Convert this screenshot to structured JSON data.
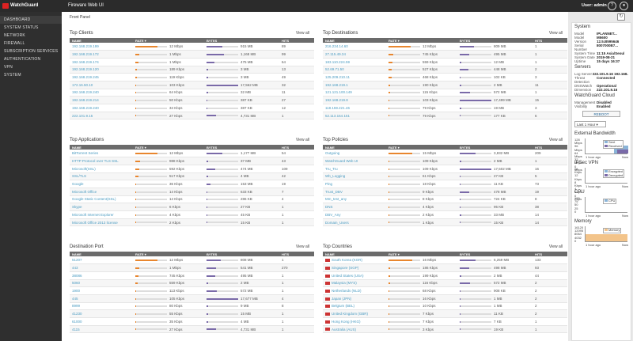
{
  "header": {
    "logo": "WatchGuard",
    "title": "Fireware Web UI",
    "user": "User: admin",
    "help_icon": "?",
    "user_icon": "person"
  },
  "sidebar": [
    "DASHBOARD",
    "SYSTEM STATUS",
    "NETWORK",
    "FIREWALL",
    "SUBSCRIPTION SERVICES",
    "AUTHENTICATION",
    "VPN",
    "SYSTEM"
  ],
  "breadcrumb": "Front Panel",
  "columns": {
    "rate": "RATE ▾",
    "bytes": "BYTES",
    "hits": "HITS"
  },
  "view_all": "View all",
  "cards": [
    {
      "title": "Top Clients",
      "col1": "NAME",
      "rows": [
        [
          "192.168.219.199",
          "12 Mbps",
          "915 MB",
          "89",
          0.7,
          0.5
        ],
        [
          "192.168.219.172",
          "1 Mbps",
          "1,168 MB",
          "99",
          0.12,
          0.55
        ],
        [
          "192.168.219.174",
          "1 Mbps",
          "475 MB",
          "64",
          0.1,
          0.25
        ],
        [
          "192.168.219.120",
          "189 Kbps",
          "3 MB",
          "13",
          0.05,
          0.04
        ],
        [
          "192.168.219.245",
          "119 Kbps",
          "3 MB",
          "49",
          0.04,
          0.04
        ],
        [
          "172.16.50.10",
          "103 Kbps",
          "17,562 MB",
          "32",
          0.03,
          1.0
        ],
        [
          "192.168.219.240",
          "64 Kbps",
          "32 MB",
          "11",
          0.02,
          0.06
        ],
        [
          "192.168.219.214",
          "50 Kbps",
          "387 KB",
          "27",
          0.02,
          0.02
        ],
        [
          "192.168.219.240",
          "34 Kbps",
          "387 KB",
          "12",
          0.01,
          0.02
        ],
        [
          "222.101.9.15",
          "27 Kbps",
          "4,731 MB",
          "1",
          0.01,
          0.3
        ]
      ]
    },
    {
      "title": "Top Destinations",
      "col1": "NAME",
      "rows": [
        [
          "216.234.14.60",
          "12 Mbps",
          "809 MB",
          "1",
          0.7,
          0.45
        ],
        [
          "27.115.49.34",
          "745 Kbps",
          "495 MB",
          "1",
          0.15,
          0.3
        ],
        [
          "183.110.224.59",
          "559 Kbps",
          "12 MB",
          "1",
          0.12,
          0.05
        ],
        [
          "52.69.71.50",
          "527 Kbps",
          "448 MB",
          "2",
          0.1,
          0.28
        ],
        [
          "125.209.210.11",
          "468 Kbps",
          "102 KB",
          "3",
          0.09,
          0.02
        ],
        [
          "192.168.219.1",
          "190 Kbps",
          "2 MB",
          "11",
          0.05,
          0.04
        ],
        [
          "121.121.100.149",
          "115 Kbps",
          "572 MB",
          "1",
          0.04,
          0.32
        ],
        [
          "192.168.219.8",
          "103 Kbps",
          "17,499 MB",
          "15",
          0.03,
          1.0
        ],
        [
          "118.159.221.46",
          "79 Kbps",
          "19 MB",
          "3",
          0.02,
          0.06
        ],
        [
          "52.113.164.151",
          "79 Kbps",
          "177 KB",
          "6",
          0.02,
          0.02
        ]
      ]
    },
    {
      "title": "Top Applications",
      "col1": "NAME",
      "rows": [
        [
          "BitTorrent Series",
          "12 Mbps",
          "1,177 MB",
          "54",
          0.7,
          0.5
        ],
        [
          "HTTP Protocol over TLS SSL",
          "988 Kbps",
          "37 MB",
          "43",
          0.15,
          0.06
        ],
        [
          "Microsoft(SSL)",
          "592 Kbps",
          "474 MB",
          "109",
          0.12,
          0.28
        ],
        [
          "SSL/TLS",
          "517 Kbps",
          "4 MB",
          "42",
          0.1,
          0.04
        ],
        [
          "Google",
          "36 Kbps",
          "153 MB",
          "19",
          0.01,
          0.12
        ],
        [
          "Microsoft Office",
          "14 Kbps",
          "633 KB",
          "7",
          0.01,
          0.02
        ],
        [
          "Google Static Content(SSL)",
          "14 Kbps",
          "286 KB",
          "4",
          0.01,
          0.02
        ],
        [
          "Skype",
          "6 Kbps",
          "27 KB",
          "1",
          0.005,
          0.01
        ],
        [
          "Microsoft Internet Explorer",
          "4 Kbps",
          "45 KB",
          "1",
          0.005,
          0.01
        ],
        [
          "Microsoft Office 2013 license",
          "2 Kbps",
          "15 KB",
          "1",
          0.003,
          0.01
        ]
      ]
    },
    {
      "title": "Top Policies",
      "col1": "NAME",
      "rows": [
        [
          "Outgoing",
          "15 Mbps",
          "3,832 MB",
          "209",
          0.75,
          0.5
        ],
        [
          "WatchGuard Web UI",
          "109 Kbps",
          "2 MB",
          "1",
          0.03,
          0.04
        ],
        [
          "Tru_Tru",
          "109 Kbps",
          "17,502 MB",
          "16",
          0.03,
          1.0
        ],
        [
          "Wb_Logging",
          "61 Kbps",
          "27 KB",
          "5",
          0.02,
          0.01
        ],
        [
          "Ping",
          "18 Kbps",
          "11 KB",
          "73",
          0.01,
          0.01
        ],
        [
          "Trust_DBV",
          "9 Kbps",
          "478 MB",
          "19",
          0.005,
          0.3
        ],
        [
          "Mm_test_any",
          "8 Kbps",
          "724 KB",
          "8",
          0.005,
          0.02
        ],
        [
          "DNS",
          "4 Kbps",
          "95 KB",
          "38",
          0.003,
          0.01
        ],
        [
          "DBV_Any",
          "2 Kbps",
          "33 MB",
          "14",
          0.002,
          0.05
        ],
        [
          "Domain_Users",
          "1 Kbps",
          "15 KB",
          "14",
          0.001,
          0.01
        ]
      ]
    },
    {
      "title": "Destination Port",
      "col1": "NAME",
      "rows": [
        [
          "51207",
          "12 Mbps",
          "808 MB",
          "1",
          0.7,
          0.45
        ],
        [
          "443",
          "1 Mbps",
          "541 MB",
          "270",
          0.12,
          0.3
        ],
        [
          "38086",
          "745 Kbps",
          "495 MB",
          "1",
          0.09,
          0.28
        ],
        [
          "5060",
          "559 Kbps",
          "2 MB",
          "1",
          0.07,
          0.04
        ],
        [
          "1900",
          "113 Kbps",
          "572 MB",
          "1",
          0.03,
          0.32
        ],
        [
          "445",
          "105 Kbps",
          "17,677 MB",
          "4",
          0.03,
          1.0
        ],
        [
          "8999",
          "80 Kbps",
          "9 MB",
          "8",
          0.02,
          0.04
        ],
        [
          "41230",
          "55 Kbps",
          "15 MB",
          "1",
          0.02,
          0.05
        ],
        [
          "61000",
          "35 Kbps",
          "4 MB",
          "1",
          0.01,
          0.04
        ],
        [
          "4115",
          "27 Kbps",
          "4,731 MB",
          "1",
          0.01,
          0.3
        ]
      ]
    },
    {
      "title": "Top Countries",
      "col1": "NAME",
      "rows": [
        [
          "South Korea (KOR)",
          "16 Mbps",
          "6,259 MB",
          "133",
          0.75,
          0.5
        ],
        [
          "Singapore (SGP)",
          "186 Kbps",
          "498 MB",
          "93",
          0.05,
          0.3
        ],
        [
          "United States (USA)",
          "199 Kbps",
          "2 MB",
          "44",
          0.05,
          0.04
        ],
        [
          "Malaysia (MYS)",
          "116 Kbps",
          "572 MB",
          "2",
          0.04,
          0.32
        ],
        [
          "Netherlands (NLD)",
          "68 Kbps",
          "908 KB",
          "2",
          0.02,
          0.02
        ],
        [
          "Japan (JPN)",
          "16 Kbps",
          "1 MB",
          "2",
          0.01,
          0.03
        ],
        [
          "Belgium (BEL)",
          "10 Kbps",
          "1 MB",
          "2",
          0.01,
          0.03
        ],
        [
          "United Kingdom (GBR)",
          "7 Kbps",
          "11 KB",
          "2",
          0.005,
          0.01
        ],
        [
          "Hong Kong (HKG)",
          "7 Kbps",
          "7 KB",
          "1",
          0.005,
          0.01
        ],
        [
          "Australia (AUS)",
          "3 Kbps",
          "19 KB",
          "1",
          0.003,
          0.01
        ]
      ]
    }
  ],
  "system": {
    "title": "System",
    "rows": [
      [
        "Model",
        "IPLANNET..."
      ],
      [
        "Model",
        "M5600"
      ],
      [
        "Version",
        "12.5.B595646"
      ],
      [
        "Serial Number",
        "8007000B7..."
      ],
      [
        "System Time",
        "11:15 Asia/Seoul"
      ],
      [
        "System Date",
        "2019-08-21"
      ],
      [
        "Uptime",
        "15 days 16:37"
      ]
    ]
  },
  "servers": {
    "title": "Servers",
    "rows": [
      [
        "Log Server",
        "222.101.9.16 192.168.219..."
      ],
      [
        "Threat Detection",
        "Connected"
      ],
      [
        "DNSWatch",
        "Operational"
      ],
      [
        "Dimension",
        "222.101.9.16"
      ]
    ]
  },
  "cloud": {
    "title": "WatchGuard Cloud",
    "rows": [
      [
        "Management",
        "Disabled"
      ],
      [
        "Visibility",
        "Enabled"
      ]
    ],
    "reboot": "REBOOT"
  },
  "range_select": "Last 1 Hour",
  "ext_bw": {
    "title": "External Bandwidth",
    "ticks": [
      "128 Mbps",
      "96 Mbps",
      "64 Mbps",
      "32 Mbps",
      "0 Mbps"
    ],
    "legend": [
      "Sent",
      "Received"
    ],
    "xlabels": [
      "1 hour ago",
      "Now"
    ],
    "colors": {
      "sent": "#8ab4d8",
      "received": "#7a6aa8"
    }
  },
  "ipsec": {
    "title": "IPSec VPN",
    "ticks": [
      "16 Kbps",
      "12 Kbps",
      "8 Kbps",
      "4 Kbps",
      "0 Kbps"
    ],
    "legend": [
      "Encrypted",
      "Decrypted"
    ],
    "xlabels": [
      "1 hour ago",
      "Now"
    ]
  },
  "cpu": {
    "title": "CPU",
    "ticks": [
      "100",
      "75",
      "50",
      "25",
      "0"
    ],
    "legend": [
      "CPU"
    ],
    "xlabels": [
      "1 hour ago",
      "Now"
    ]
  },
  "memory": {
    "title": "Memory",
    "ticks": [
      "16120",
      "12095",
      "8064",
      "4032",
      "0"
    ],
    "legend": [
      "Memory"
    ],
    "xlabels": [
      "1 hour ago",
      "Now"
    ]
  },
  "refresh_icon": "refresh"
}
